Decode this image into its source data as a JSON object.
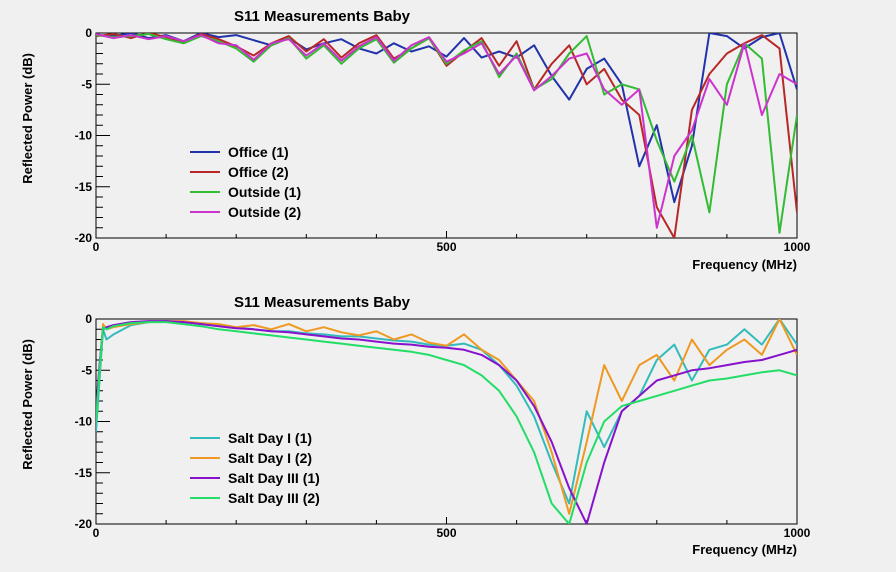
{
  "chart_data": [
    {
      "type": "line",
      "title": "S11 Measurements Baby",
      "xlabel": "Frequency (MHz)",
      "ylabel": "Reflected Power (dB)",
      "xlim": [
        0,
        1000
      ],
      "ylim": [
        -20,
        0
      ],
      "xticks": [
        "0",
        "500",
        "1000"
      ],
      "yticks": [
        "0",
        "-5",
        "-10",
        "-15",
        "-20"
      ],
      "grid": false,
      "legend_position": "lower-left",
      "series": [
        {
          "name": "Office (1)",
          "color": "#2233aa",
          "x": [
            0,
            25,
            50,
            75,
            100,
            125,
            150,
            175,
            200,
            225,
            250,
            275,
            300,
            325,
            350,
            375,
            400,
            425,
            450,
            475,
            500,
            525,
            550,
            575,
            600,
            625,
            650,
            675,
            700,
            725,
            750,
            775,
            800,
            825,
            850,
            875,
            900,
            925,
            950,
            975,
            1000
          ],
          "y": [
            -0.2,
            -0.3,
            0,
            -0.5,
            -0.2,
            -0.8,
            0,
            -0.4,
            -0.2,
            -0.7,
            -1.2,
            -0.5,
            -1.6,
            -1.0,
            -0.6,
            -1.5,
            -2.0,
            -1.0,
            -1.8,
            -1.3,
            -2.3,
            -0.5,
            -2.4,
            -1.8,
            -2.4,
            -1.2,
            -4.2,
            -6.5,
            -3.5,
            -2.5,
            -5.0,
            -13.0,
            -9.0,
            -16.5,
            -11.0,
            0,
            -0.3,
            -1.5,
            -0.4,
            0,
            -5.5
          ]
        },
        {
          "name": "Office (2)",
          "color": "#b82828",
          "x": [
            0,
            25,
            50,
            75,
            100,
            125,
            150,
            175,
            200,
            225,
            250,
            275,
            300,
            325,
            350,
            375,
            400,
            425,
            450,
            475,
            500,
            525,
            550,
            575,
            600,
            625,
            650,
            675,
            700,
            725,
            750,
            775,
            800,
            825,
            850,
            875,
            900,
            925,
            950,
            975,
            1000
          ],
          "y": [
            -0.3,
            -0.1,
            -0.5,
            0,
            -0.4,
            -0.9,
            -0.1,
            -0.6,
            -1.3,
            -2.2,
            -1.0,
            -0.3,
            -1.8,
            -0.6,
            -2.4,
            -1.0,
            -0.2,
            -2.5,
            -1.5,
            -0.5,
            -3.2,
            -1.8,
            -0.5,
            -3.2,
            -0.8,
            -5.5,
            -3.0,
            -1.2,
            -5.0,
            -3.5,
            -6.5,
            -8.0,
            -17.0,
            -20.0,
            -7.5,
            -4.0,
            -2.0,
            -1.0,
            -0.2,
            -1.5,
            -17.5
          ]
        },
        {
          "name": "Outside (1)",
          "color": "#33bb33",
          "x": [
            0,
            25,
            50,
            75,
            100,
            125,
            150,
            175,
            200,
            225,
            250,
            275,
            300,
            325,
            350,
            375,
            400,
            425,
            450,
            475,
            500,
            525,
            550,
            575,
            600,
            625,
            650,
            675,
            700,
            725,
            750,
            775,
            800,
            825,
            850,
            875,
            900,
            925,
            950,
            975,
            1000
          ],
          "y": [
            -0.2,
            -0.4,
            -0.3,
            -0.1,
            -0.6,
            -1.0,
            -0.3,
            -0.8,
            -1.5,
            -2.8,
            -1.2,
            -0.5,
            -2.5,
            -1.2,
            -3.0,
            -1.5,
            -0.6,
            -2.9,
            -1.5,
            -0.5,
            -3.0,
            -1.7,
            -0.8,
            -4.3,
            -2.0,
            -5.5,
            -4.5,
            -2.0,
            -0.3,
            -6.0,
            -5.0,
            -5.5,
            -10.5,
            -14.5,
            -10.0,
            -17.5,
            -5.0,
            -1.0,
            -2.5,
            -19.5,
            -8.0
          ]
        },
        {
          "name": "Outside (2)",
          "color": "#cc33cc",
          "x": [
            0,
            25,
            50,
            75,
            100,
            125,
            150,
            175,
            200,
            225,
            250,
            275,
            300,
            325,
            350,
            375,
            400,
            425,
            450,
            475,
            500,
            525,
            550,
            575,
            600,
            625,
            650,
            675,
            700,
            725,
            750,
            775,
            800,
            825,
            850,
            875,
            900,
            925,
            950,
            975,
            1000
          ],
          "y": [
            -0.1,
            -0.5,
            -0.2,
            -0.6,
            -0.3,
            -0.8,
            -0.2,
            -1.0,
            -1.2,
            -2.6,
            -1.0,
            -0.6,
            -2.2,
            -1.0,
            -2.7,
            -1.3,
            -0.4,
            -2.7,
            -1.2,
            -0.4,
            -2.8,
            -2.0,
            -1.0,
            -4.0,
            -2.2,
            -5.6,
            -4.2,
            -2.5,
            -2.0,
            -5.5,
            -7.0,
            -5.5,
            -19.0,
            -12.0,
            -9.5,
            -4.5,
            -7.0,
            -1.0,
            -8.0,
            -4.0,
            -5.0
          ]
        }
      ]
    },
    {
      "type": "line",
      "title": "S11 Measurements Baby",
      "xlabel": "Frequency (MHz)",
      "ylabel": "Reflected Power (dB)",
      "xlim": [
        0,
        1000
      ],
      "ylim": [
        -20,
        0
      ],
      "xticks": [
        "0",
        "500",
        "1000"
      ],
      "yticks": [
        "0",
        "-5",
        "-10",
        "-15",
        "-20"
      ],
      "grid": false,
      "legend_position": "lower-left",
      "series": [
        {
          "name": "Salt Day I (1)",
          "color": "#33bbbb",
          "x": [
            0,
            5,
            10,
            15,
            25,
            50,
            75,
            100,
            125,
            150,
            175,
            200,
            225,
            250,
            275,
            300,
            325,
            350,
            375,
            400,
            425,
            450,
            475,
            500,
            525,
            550,
            575,
            600,
            625,
            650,
            675,
            700,
            725,
            750,
            775,
            800,
            825,
            850,
            875,
            900,
            925,
            950,
            975,
            1000
          ],
          "y": [
            -11.0,
            -6.0,
            -1.0,
            -2.0,
            -1.5,
            -0.6,
            -0.3,
            -0.2,
            -0.3,
            -0.4,
            -0.6,
            -0.8,
            -1.0,
            -1.2,
            -1.2,
            -1.4,
            -1.5,
            -1.7,
            -1.7,
            -1.9,
            -2.1,
            -2.2,
            -2.5,
            -2.6,
            -2.4,
            -3.0,
            -4.5,
            -6.5,
            -9.5,
            -14.0,
            -18.0,
            -9.0,
            -12.5,
            -9.0,
            -7.5,
            -4.0,
            -2.5,
            -6.0,
            -3.0,
            -2.5,
            -1.0,
            -2.5,
            0,
            -2.5
          ]
        },
        {
          "name": "Salt Day I (2)",
          "color": "#ee9922",
          "x": [
            0,
            5,
            10,
            15,
            25,
            50,
            75,
            100,
            125,
            150,
            175,
            200,
            225,
            250,
            275,
            300,
            325,
            350,
            375,
            400,
            425,
            450,
            475,
            500,
            525,
            550,
            575,
            600,
            625,
            650,
            675,
            700,
            725,
            750,
            775,
            800,
            825,
            850,
            875,
            900,
            925,
            950,
            975,
            1000
          ],
          "y": [
            -9.5,
            -5.0,
            -0.5,
            -1.0,
            -0.8,
            -0.5,
            -0.3,
            -0.2,
            -0.2,
            -0.4,
            -0.5,
            -0.8,
            -0.6,
            -1.0,
            -0.5,
            -1.2,
            -0.8,
            -1.3,
            -1.6,
            -1.2,
            -2.0,
            -1.5,
            -2.3,
            -2.6,
            -1.5,
            -3.0,
            -4.0,
            -6.0,
            -8.0,
            -13.0,
            -19.0,
            -12.0,
            -4.5,
            -8.0,
            -4.5,
            -3.5,
            -6.0,
            -2.0,
            -4.5,
            -3.0,
            -2.0,
            -3.5,
            0,
            -3.5
          ]
        },
        {
          "name": "Salt Day III (1)",
          "color": "#8811cc",
          "x": [
            0,
            5,
            10,
            15,
            25,
            50,
            75,
            100,
            125,
            150,
            175,
            200,
            225,
            250,
            275,
            300,
            325,
            350,
            375,
            400,
            425,
            450,
            475,
            500,
            525,
            550,
            575,
            600,
            625,
            650,
            675,
            700,
            725,
            750,
            775,
            800,
            825,
            850,
            875,
            900,
            925,
            950,
            975,
            1000
          ],
          "y": [
            -9.0,
            -4.5,
            -1.0,
            -0.8,
            -0.6,
            -0.3,
            -0.2,
            -0.2,
            -0.3,
            -0.5,
            -0.7,
            -0.9,
            -1.0,
            -1.2,
            -1.3,
            -1.5,
            -1.7,
            -1.9,
            -2.0,
            -2.2,
            -2.4,
            -2.5,
            -2.7,
            -2.8,
            -3.0,
            -3.5,
            -4.5,
            -6.0,
            -8.5,
            -12.0,
            -16.5,
            -20.0,
            -14.0,
            -9.0,
            -7.5,
            -6.0,
            -5.5,
            -5.0,
            -4.8,
            -4.5,
            -4.2,
            -4.0,
            -3.5,
            -3.0
          ]
        },
        {
          "name": "Salt Day III (2)",
          "color": "#22dd66",
          "x": [
            0,
            5,
            10,
            15,
            25,
            50,
            75,
            100,
            125,
            150,
            175,
            200,
            225,
            250,
            275,
            300,
            325,
            350,
            375,
            400,
            425,
            450,
            475,
            500,
            525,
            550,
            575,
            600,
            625,
            650,
            675,
            700,
            725,
            750,
            775,
            800,
            825,
            850,
            875,
            900,
            925,
            950,
            975,
            1000
          ],
          "y": [
            -10.0,
            -5.0,
            -0.8,
            -1.0,
            -0.7,
            -0.4,
            -0.3,
            -0.3,
            -0.5,
            -0.7,
            -1.0,
            -1.2,
            -1.4,
            -1.6,
            -1.8,
            -2.0,
            -2.2,
            -2.4,
            -2.6,
            -2.8,
            -3.0,
            -3.2,
            -3.5,
            -4.0,
            -4.5,
            -5.5,
            -7.0,
            -9.5,
            -13.0,
            -18.0,
            -20.0,
            -14.0,
            -10.0,
            -8.5,
            -8.0,
            -7.5,
            -7.0,
            -6.5,
            -6.0,
            -5.8,
            -5.5,
            -5.2,
            -5.0,
            -5.5
          ]
        }
      ]
    }
  ]
}
